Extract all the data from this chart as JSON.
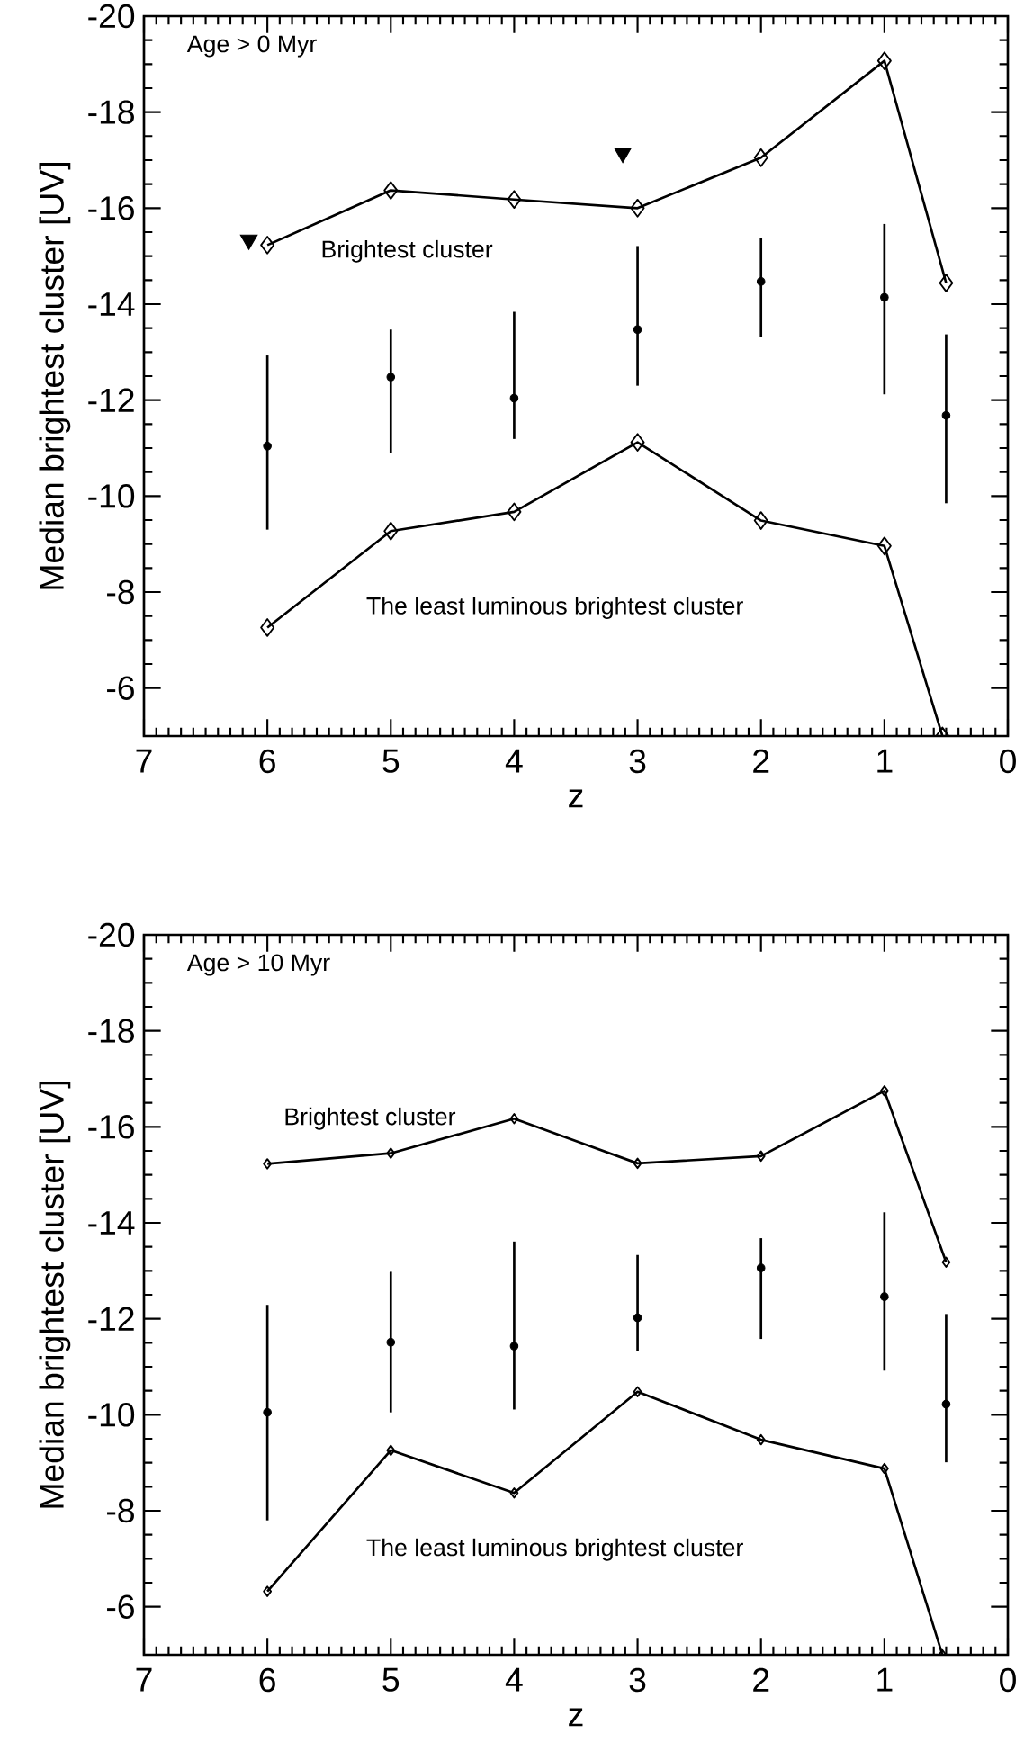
{
  "chart_data": [
    {
      "type": "line",
      "xlabel": "z",
      "ylabel": "Median brightest cluster [UV]",
      "annotations": [
        "Age > 0 Myr"
      ],
      "xlim": [
        7,
        0
      ],
      "ylim": [
        -5,
        -20
      ],
      "xticks": [
        7,
        6,
        5,
        4,
        3,
        2,
        1,
        0
      ],
      "yticks": [
        -20,
        -18,
        -16,
        -14,
        -12,
        -10,
        -8,
        -6
      ],
      "grid": false,
      "legend": false,
      "line_style": "solid",
      "series": [
        {
          "name": "Brightest cluster",
          "color": "#000000",
          "marker": "diamond",
          "x": [
            6,
            5,
            4,
            3,
            2,
            1,
            0.5
          ],
          "values": [
            -15.23,
            -16.37,
            -16.18,
            -16.0,
            -17.05,
            -19.07,
            -14.44
          ]
        },
        {
          "name": "The least luminous brightest cluster",
          "color": "#000000",
          "marker": "diamond",
          "x": [
            6,
            5,
            4,
            3,
            2,
            1,
            0.53
          ],
          "values": [
            -7.26,
            -9.27,
            -9.67,
            -11.12,
            -9.49,
            -8.96,
            -5.0
          ]
        },
        {
          "type": "scatter",
          "color": "#000000",
          "marker": "circle",
          "x": [
            6,
            5,
            4,
            3,
            2,
            1,
            0.5
          ],
          "values": [
            -11.04,
            -12.48,
            -12.04,
            -13.47,
            -14.47,
            -14.14,
            -11.68
          ],
          "errors": [
            [
              -12.93,
              -9.3
            ],
            [
              -13.47,
              -10.89
            ],
            [
              -13.84,
              -11.19
            ],
            [
              -15.21,
              -12.3
            ],
            [
              -15.38,
              -13.32
            ],
            [
              -15.67,
              -12.12
            ],
            [
              -13.37,
              -9.85
            ]
          ]
        },
        {
          "type": "scatter",
          "color": "#000000",
          "marker": "triangle",
          "x": [
            6.15,
            3.12
          ],
          "values": [
            -15.34,
            -17.15
          ]
        }
      ]
    },
    {
      "type": "line",
      "xlabel": "z",
      "ylabel": "Median brightest cluster [UV]",
      "annotations": [
        "Age > 10 Myr"
      ],
      "xlim": [
        7,
        0
      ],
      "ylim": [
        -5,
        -20
      ],
      "xticks": [
        7,
        6,
        5,
        4,
        3,
        2,
        1,
        0
      ],
      "yticks": [
        -20,
        -18,
        -16,
        -14,
        -12,
        -10,
        -8,
        -6
      ],
      "grid": false,
      "legend": false,
      "line_style": "solid",
      "series": [
        {
          "name": "Brightest cluster",
          "color": "#000000",
          "marker": "diamond",
          "x": [
            6,
            5,
            4,
            3,
            2,
            1,
            0.5
          ],
          "values": [
            -15.23,
            -15.45,
            -16.17,
            -15.24,
            -15.39,
            -16.75,
            -13.18
          ]
        },
        {
          "name": "The least luminous brightest cluster",
          "color": "#000000",
          "marker": "diamond",
          "x": [
            6,
            5,
            4,
            3,
            2,
            1,
            0.53
          ],
          "values": [
            -6.32,
            -9.26,
            -8.37,
            -10.48,
            -9.48,
            -8.88,
            -5.0
          ]
        },
        {
          "type": "scatter",
          "color": "#000000",
          "marker": "circle",
          "x": [
            6,
            5,
            4,
            3,
            2,
            1,
            0.5
          ],
          "values": [
            -10.05,
            -11.51,
            -11.43,
            -12.02,
            -13.06,
            -12.46,
            -10.22
          ],
          "errors": [
            [
              -12.29,
              -7.8
            ],
            [
              -12.98,
              -10.05
            ],
            [
              -13.61,
              -10.11
            ],
            [
              -13.33,
              -11.33
            ],
            [
              -13.68,
              -11.58
            ],
            [
              -14.22,
              -10.92
            ],
            [
              -12.1,
              -9.01
            ]
          ]
        }
      ]
    }
  ]
}
